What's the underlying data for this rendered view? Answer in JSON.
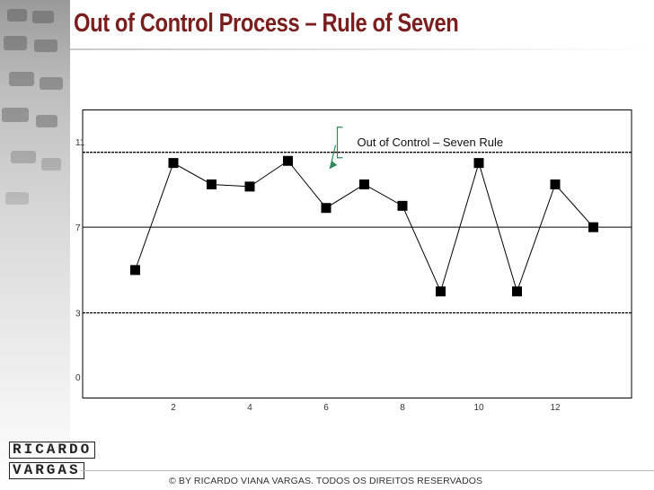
{
  "slide": {
    "title": "Out of Control Process – Rule of Seven",
    "footer": "© BY RICARDO VIANA VARGAS. TODOS OS DIREITOS RESERVADOS",
    "logo": {
      "line1": "RICARDO",
      "line2": "VARGAS"
    },
    "colors": {
      "title": "#7a1e1e",
      "marker": "#000000",
      "line": "#000000"
    }
  },
  "chart_data": {
    "type": "line",
    "title": "",
    "xlabel": "",
    "ylabel": "",
    "x": [
      1,
      2,
      3,
      4,
      5,
      6,
      7,
      8,
      9,
      10,
      11,
      12,
      13
    ],
    "values": [
      5,
      10,
      9,
      8.9,
      10.1,
      7.9,
      9,
      8,
      4,
      10,
      4,
      9,
      7
    ],
    "y_ticks": [
      0,
      3,
      7,
      11
    ],
    "x_ticks": [
      2,
      4,
      6,
      8,
      10,
      12
    ],
    "ylim": [
      -1,
      12.5
    ],
    "xlim": [
      0,
      14
    ],
    "control_limits": {
      "upper": 10.5,
      "center": 7,
      "lower": 3
    },
    "annotation": {
      "text": "Out of Control – Seven Rule"
    },
    "grid": false
  }
}
